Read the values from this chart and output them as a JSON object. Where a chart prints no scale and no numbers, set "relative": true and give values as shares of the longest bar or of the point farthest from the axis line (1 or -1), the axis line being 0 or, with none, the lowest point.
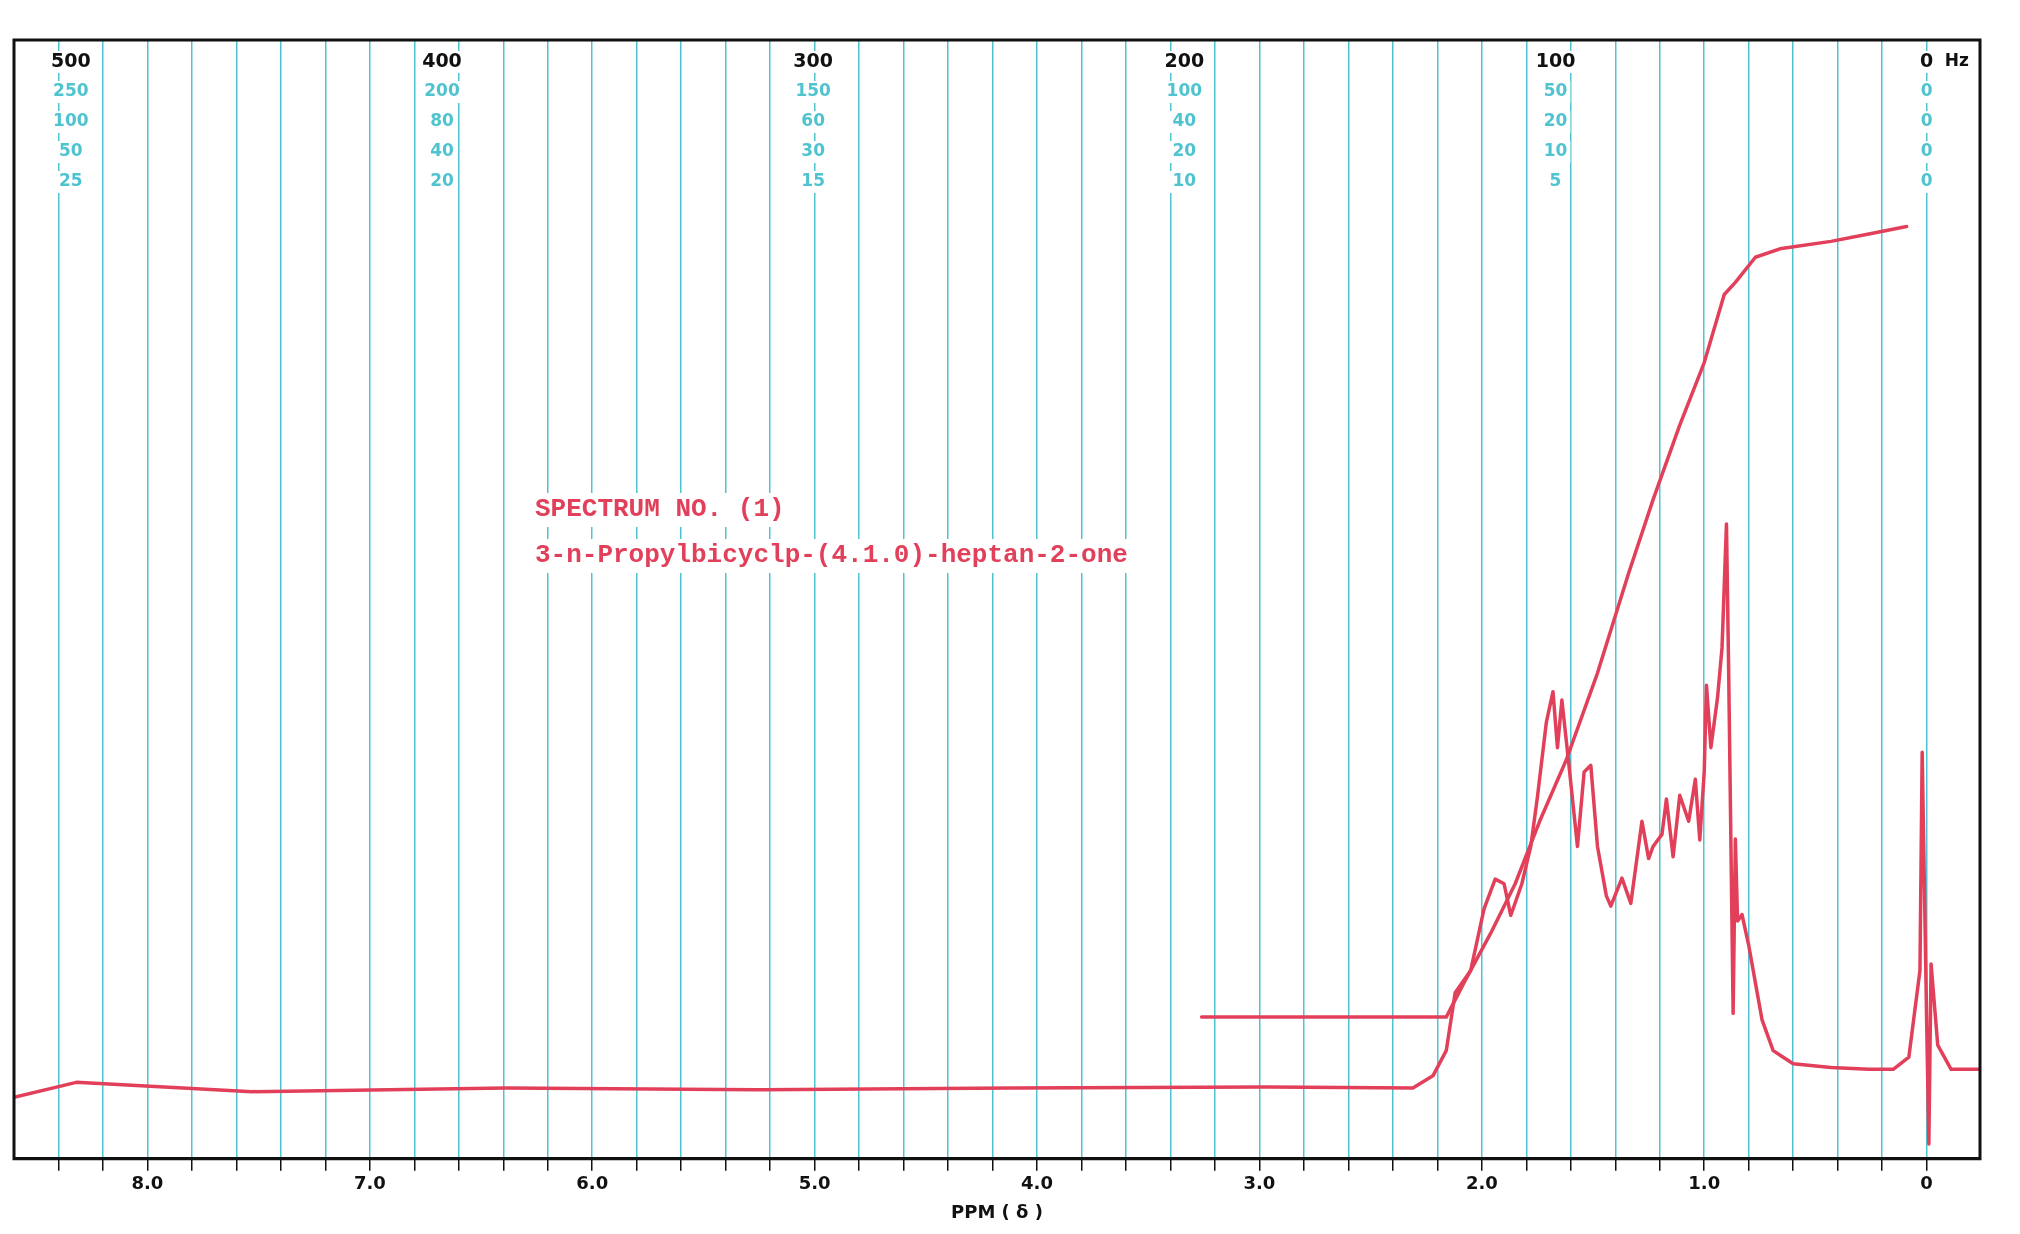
{
  "chart_data": {
    "type": "line",
    "relative": true,
    "xlabel": "PPM ( δ )",
    "x2label": "Hz",
    "annotations": [
      "SPECTRUM NO. (1)",
      "3-n-Propylbicyclp-(4.1.0)-heptan-2-one",
      "500",
      "400",
      "300",
      "200",
      "100",
      "0",
      "250",
      "200",
      "150",
      "100",
      "50",
      "0",
      "100",
      "80",
      "60",
      "40",
      "20",
      "0",
      "50",
      "40",
      "30",
      "20",
      "10",
      "0",
      "25",
      "20",
      "15",
      "10",
      "5",
      "0"
    ],
    "xlim": [
      8.6,
      -0.24
    ],
    "xticks": [
      {
        "value": 8.4,
        "label": null
      },
      {
        "value": 8.2,
        "label": null
      },
      {
        "value": 8,
        "label": "8.0"
      },
      {
        "value": 7.8,
        "label": null
      },
      {
        "value": 7.6,
        "label": null
      },
      {
        "value": 7.4,
        "label": null
      },
      {
        "value": 7.2,
        "label": null
      },
      {
        "value": 7,
        "label": "7.0"
      },
      {
        "value": 6.8,
        "label": null
      },
      {
        "value": 6.6,
        "label": null
      },
      {
        "value": 6.4,
        "label": null
      },
      {
        "value": 6.2,
        "label": null
      },
      {
        "value": 6,
        "label": "6.0"
      },
      {
        "value": 5.8,
        "label": null
      },
      {
        "value": 5.6,
        "label": null
      },
      {
        "value": 5.4,
        "label": null
      },
      {
        "value": 5.2,
        "label": null
      },
      {
        "value": 5,
        "label": "5.0"
      },
      {
        "value": 4.8,
        "label": null
      },
      {
        "value": 4.6,
        "label": null
      },
      {
        "value": 4.4,
        "label": null
      },
      {
        "value": 4.2,
        "label": null
      },
      {
        "value": 4,
        "label": "4.0"
      },
      {
        "value": 3.8,
        "label": null
      },
      {
        "value": 3.6,
        "label": null
      },
      {
        "value": 3.4,
        "label": null
      },
      {
        "value": 3.2,
        "label": null
      },
      {
        "value": 3,
        "label": "3.0"
      },
      {
        "value": 2.8,
        "label": null
      },
      {
        "value": 2.6,
        "label": null
      },
      {
        "value": 2.4,
        "label": null
      },
      {
        "value": 2.2,
        "label": null
      },
      {
        "value": 2,
        "label": "2.0"
      },
      {
        "value": 1.8,
        "label": null
      },
      {
        "value": 1.6,
        "label": null
      },
      {
        "value": 1.4,
        "label": null
      },
      {
        "value": 1.2,
        "label": null
      },
      {
        "value": 1,
        "label": "1.0"
      },
      {
        "value": 0.8,
        "label": null
      },
      {
        "value": 0.6,
        "label": null
      },
      {
        "value": 0.4,
        "label": null
      },
      {
        "value": 0.2,
        "label": null
      },
      0
    ],
    "grid": true,
    "legend": false,
    "marker": "none",
    "line_style": "solid",
    "series": [
      {
        "color": "#e2405a",
        "x": [
          8.6,
          8.32,
          7.53,
          6.39,
          5.26,
          4.12,
          2.99,
          2.31,
          2.22,
          2.16,
          2.12,
          2.05,
          1.99,
          1.94,
          1.9,
          1.87,
          1.82,
          1.78,
          1.75,
          1.71,
          1.68,
          1.66,
          1.64,
          1.61,
          1.57,
          1.54,
          1.51,
          1.48,
          1.44,
          1.42,
          1.37,
          1.33,
          1.28,
          1.25,
          1.23,
          1.19,
          1.17,
          1.14,
          1.11,
          1.07,
          1.04,
          1.02,
          1.0,
          0.99,
          0.97,
          0.94,
          0.92,
          0.9,
          0.89,
          0.87,
          0.86,
          0.85,
          0.83,
          0.8,
          0.77,
          0.74,
          0.69,
          0.6,
          0.43,
          0.26,
          0.15,
          0.08,
          0.03,
          0.02,
          0.0,
          -0.01,
          -0.02,
          -0.05,
          -0.11,
          -0.24
        ],
        "values": [
          0.066,
          0.082,
          0.072,
          0.076,
          0.074,
          0.076,
          0.077,
          0.076,
          0.089,
          0.116,
          0.178,
          0.202,
          0.268,
          0.3,
          0.295,
          0.261,
          0.295,
          0.335,
          0.388,
          0.468,
          0.501,
          0.441,
          0.492,
          0.426,
          0.335,
          0.415,
          0.422,
          0.335,
          0.282,
          0.271,
          0.301,
          0.274,
          0.362,
          0.322,
          0.335,
          0.348,
          0.386,
          0.324,
          0.39,
          0.362,
          0.407,
          0.342,
          0.415,
          0.508,
          0.441,
          0.495,
          0.548,
          0.681,
          0.521,
          0.156,
          0.343,
          0.255,
          0.262,
          0.229,
          0.189,
          0.149,
          0.116,
          0.102,
          0.098,
          0.096,
          0.096,
          0.109,
          0.202,
          0.436,
          0.149,
          0.016,
          0.209,
          0.122,
          0.096,
          0.096
        ]
      },
      {
        "color": "#e2405a",
        "x": [
          3.26,
          2.16,
          2.08,
          1.96,
          1.85,
          1.74,
          1.62,
          1.48,
          1.34,
          1.23,
          1.11,
          1.0,
          0.91,
          0.86,
          0.77,
          0.66,
          0.43,
          0.26,
          0.09
        ],
        "values": [
          0.152,
          0.152,
          0.189,
          0.242,
          0.295,
          0.362,
          0.428,
          0.521,
          0.628,
          0.707,
          0.787,
          0.854,
          0.927,
          0.94,
          0.967,
          0.976,
          0.984,
          0.992,
          1.0
        ]
      }
    ]
  }
}
